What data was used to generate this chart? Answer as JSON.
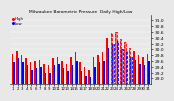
{
  "title": "Milwaukee Barometric Pressure  Daily High/Low",
  "y_ticks": [
    29.0,
    29.2,
    29.4,
    29.6,
    29.8,
    30.0,
    30.2,
    30.4,
    30.6,
    30.8,
    31.0
  ],
  "ylim": [
    28.8,
    31.2
  ],
  "bar_width": 0.35,
  "background_color": "#e8e8e8",
  "high_color": "#ff0000",
  "low_color": "#0000ff",
  "dashed_indices": [
    22,
    23,
    24,
    25,
    26
  ],
  "x_labels": [
    "1",
    "2",
    "3",
    "4",
    "5",
    "6",
    "7",
    "8",
    "9",
    "10",
    "11",
    "12",
    "13",
    "14",
    "15",
    "16",
    "17",
    "18",
    "19",
    "20",
    "21",
    "22",
    "23",
    "24",
    "25",
    "26",
    "27",
    "28",
    "29",
    "30",
    "31"
  ],
  "highs": [
    29.85,
    29.95,
    29.8,
    29.7,
    29.55,
    29.6,
    29.65,
    29.5,
    29.45,
    29.7,
    29.75,
    29.6,
    29.5,
    29.75,
    29.9,
    29.55,
    29.4,
    29.3,
    29.75,
    29.8,
    29.9,
    30.4,
    30.55,
    30.6,
    30.35,
    30.25,
    30.05,
    29.95,
    29.8,
    29.75,
    29.85
  ],
  "lows": [
    29.55,
    29.7,
    29.55,
    29.45,
    29.3,
    29.35,
    29.4,
    29.2,
    29.2,
    29.45,
    29.5,
    29.35,
    29.25,
    29.45,
    29.6,
    29.25,
    29.1,
    29.05,
    29.4,
    29.55,
    29.6,
    30.05,
    30.2,
    30.3,
    30.0,
    29.95,
    29.75,
    29.65,
    29.5,
    29.45,
    29.6
  ]
}
